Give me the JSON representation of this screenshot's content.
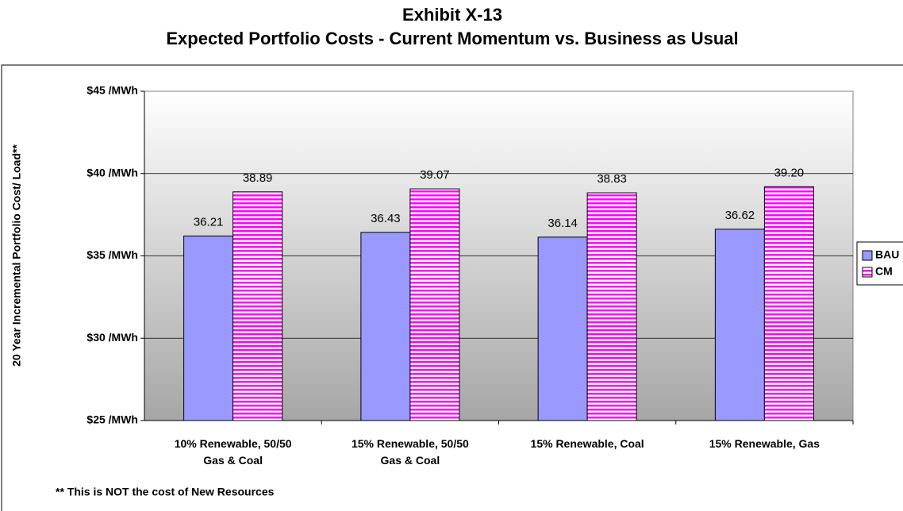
{
  "chart_data": {
    "type": "bar",
    "title": "Exhibit X-13",
    "subtitle": "Expected Portfolio Costs - Current Momentum vs. Business as Usual",
    "y_label": "20 Year Incremental Portfolio Cost/ Load**",
    "footnote": "** This is NOT the cost of New Resources",
    "categories": [
      "10% Renewable, 50/50\nGas & Coal",
      "15% Renewable, 50/50\nGas & Coal",
      "15% Renewable, Coal",
      "15% Renewable, Gas"
    ],
    "series": [
      {
        "name": "BAU",
        "color": "#9999ff",
        "values": [
          36.21,
          36.43,
          36.14,
          36.62
        ]
      },
      {
        "name": "CM",
        "color": "#ff00ff",
        "values": [
          38.89,
          39.07,
          38.83,
          39.2
        ],
        "value_labels": [
          "38.89",
          "39.07",
          "38.83",
          "39.20"
        ]
      }
    ],
    "ylim": [
      25,
      45
    ],
    "yticks": [
      {
        "value": 25,
        "label": "$25 /MWh"
      },
      {
        "value": 30,
        "label": "$30 /MWh"
      },
      {
        "value": 35,
        "label": "$35 /MWh"
      },
      {
        "value": 40,
        "label": "$40 /MWh"
      },
      {
        "value": 45,
        "label": "$45 /MWh"
      }
    ],
    "grid": true,
    "legend": "right"
  }
}
